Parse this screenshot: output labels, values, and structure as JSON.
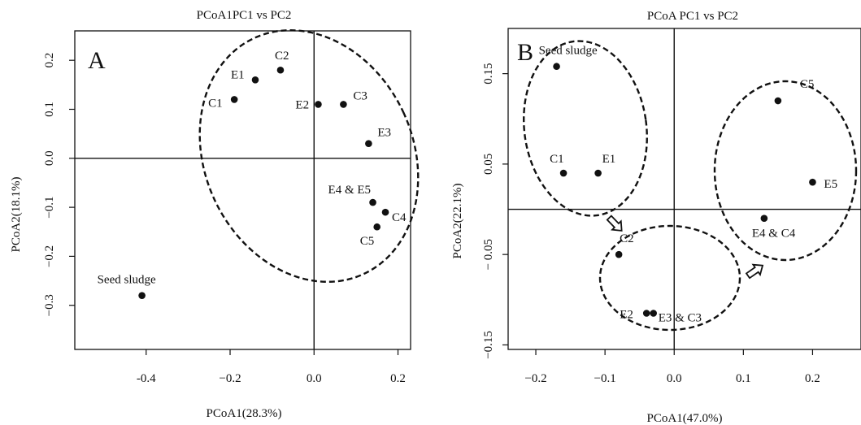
{
  "chart_data": [
    {
      "type": "scatter",
      "panel_label": "A",
      "title": "PCoA1PC1 vs  PC2",
      "xlabel": "PCoA1(28.3%)",
      "ylabel": "PCoA2(18.1%)",
      "xlim": [
        -0.57,
        0.23
      ],
      "ylim": [
        -0.39,
        0.26
      ],
      "xticks": [
        -0.4,
        -0.2,
        0.0,
        0.2
      ],
      "xtick_labels": [
        "-0.4",
        "−0.2",
        "0.0",
        "0.2"
      ],
      "yticks": [
        -0.3,
        -0.2,
        -0.1,
        0.0,
        0.1,
        0.2
      ],
      "ytick_labels": [
        "−0.3",
        "−0.2",
        "−0.1",
        "0.0",
        "0.1",
        "0.2"
      ],
      "points": [
        {
          "label": "C1",
          "x": -0.19,
          "y": 0.12
        },
        {
          "label": "E1",
          "x": -0.14,
          "y": 0.16
        },
        {
          "label": "C2",
          "x": -0.08,
          "y": 0.18
        },
        {
          "label": "E2",
          "x": 0.01,
          "y": 0.11
        },
        {
          "label": "C3",
          "x": 0.07,
          "y": 0.11
        },
        {
          "label": "E3",
          "x": 0.13,
          "y": 0.03
        },
        {
          "label": "E4 & E5",
          "x": 0.14,
          "y": -0.09
        },
        {
          "label": "C4",
          "x": 0.17,
          "y": -0.11
        },
        {
          "label": "C5",
          "x": 0.15,
          "y": -0.14
        },
        {
          "label": "Seed sludge",
          "x": -0.41,
          "y": -0.28
        }
      ],
      "grid": false
    },
    {
      "type": "scatter",
      "panel_label": "B",
      "title": "PCoA PC1 vs PC2",
      "xlabel": "PCoA1(47.0%)",
      "ylabel": "PCoA2(22.1%)",
      "xlim": [
        -0.24,
        0.27
      ],
      "ylim": [
        -0.155,
        0.2
      ],
      "xticks": [
        -0.2,
        -0.1,
        0.0,
        0.1,
        0.2
      ],
      "xtick_labels": [
        "−0.2",
        "−0.1",
        "0.0",
        "0.1",
        "0.2"
      ],
      "yticks": [
        -0.15,
        -0.05,
        0.05,
        0.15
      ],
      "ytick_labels": [
        "−0.15",
        "− 0.05",
        "0.05",
        "0.15"
      ],
      "points": [
        {
          "label": "Seed sludge",
          "x": -0.17,
          "y": 0.158
        },
        {
          "label": "C1",
          "x": -0.16,
          "y": 0.04
        },
        {
          "label": "E1",
          "x": -0.11,
          "y": 0.04
        },
        {
          "label": "C2",
          "x": -0.08,
          "y": -0.05
        },
        {
          "label": "E2",
          "x": -0.04,
          "y": -0.115
        },
        {
          "label": "E3 & C3",
          "x": -0.03,
          "y": -0.115
        },
        {
          "label": "C5",
          "x": 0.15,
          "y": 0.12
        },
        {
          "label": "E5",
          "x": 0.2,
          "y": 0.03
        },
        {
          "label": "E4 & C4",
          "x": 0.13,
          "y": -0.01
        }
      ],
      "grid": false
    }
  ]
}
